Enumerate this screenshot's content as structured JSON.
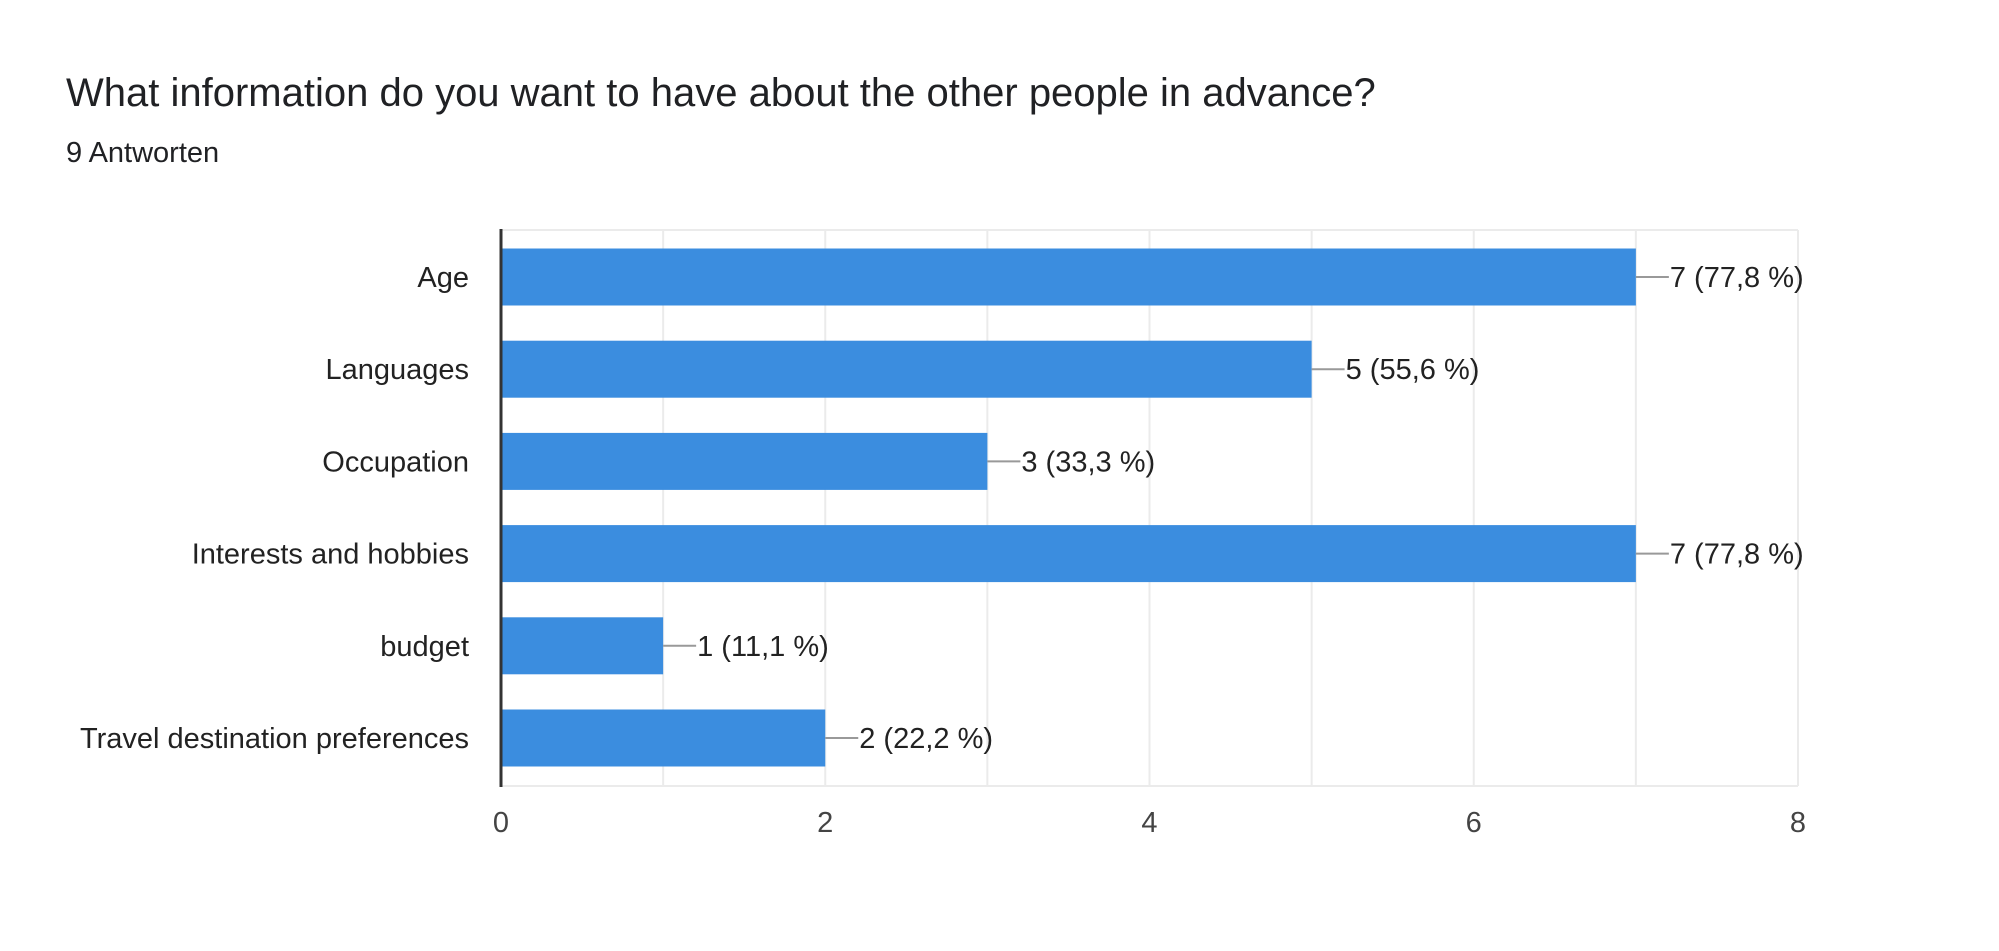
{
  "header": {
    "title": "What information do you want to have about the other people in advance?",
    "responses": "9 Antworten"
  },
  "colors": {
    "bar": "#3b8ddf",
    "grid": "#ebebeb",
    "axis": "#333333",
    "leader": "#999999"
  },
  "chart_data": {
    "type": "bar",
    "orientation": "horizontal",
    "categories": [
      "Age",
      "Languages",
      "Occupation",
      "Interests and hobbies",
      "budget",
      "Travel destination preferences"
    ],
    "values": [
      7,
      5,
      3,
      7,
      1,
      2
    ],
    "value_labels": [
      "7 (77,8 %)",
      "5 (55,6 %)",
      "3 (33,3 %)",
      "7 (77,8 %)",
      "1 (11,1 %)",
      "2 (22,2 %)"
    ],
    "xlim": [
      0,
      8
    ],
    "xticks": [
      0,
      2,
      4,
      6,
      8
    ],
    "xtick_labels": [
      "0",
      "2",
      "4",
      "6",
      "8"
    ],
    "grid": true,
    "legend": "none"
  }
}
